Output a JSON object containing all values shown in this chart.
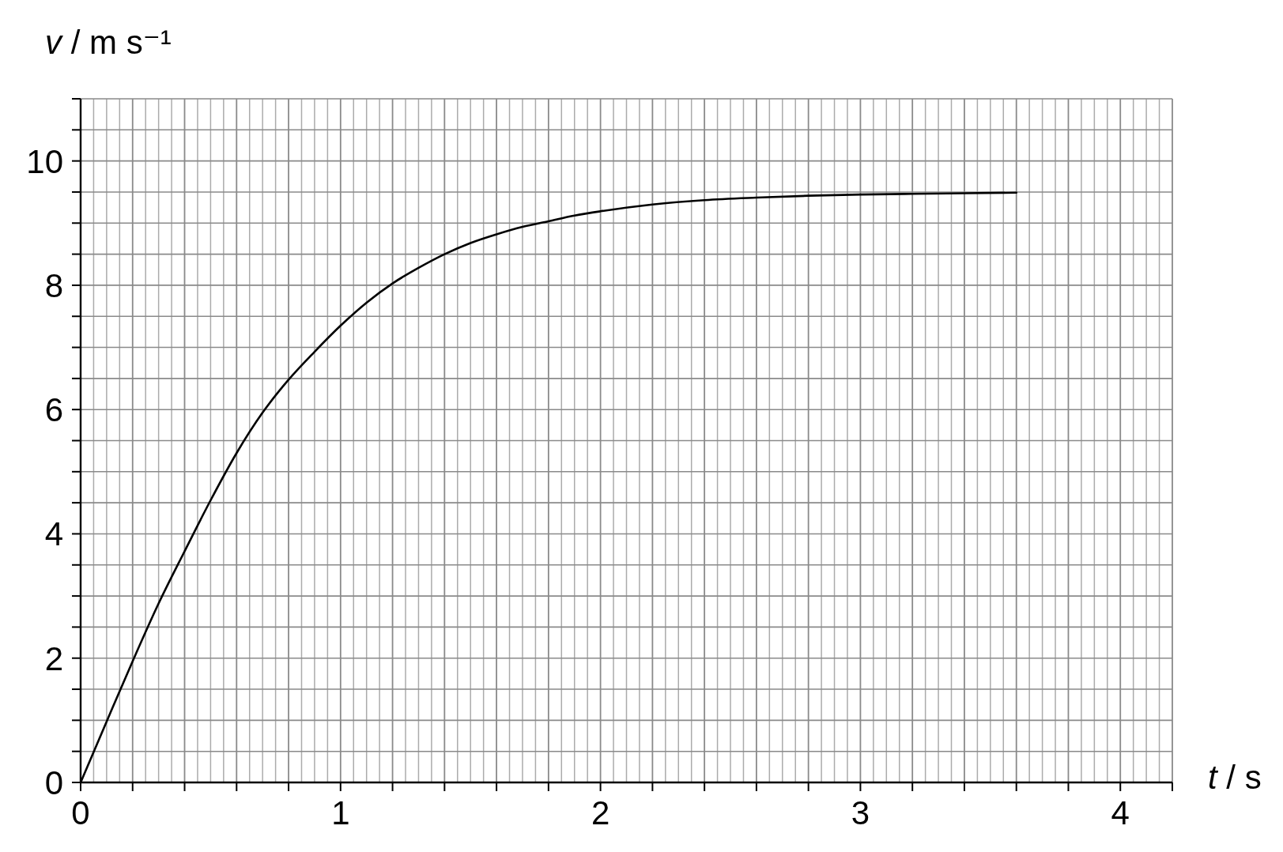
{
  "chart_data": {
    "type": "line",
    "xlabel": "t / s",
    "ylabel": "v / m s⁻¹",
    "x": [
      0,
      0.1,
      0.2,
      0.3,
      0.4,
      0.5,
      0.6,
      0.7,
      0.8,
      0.9,
      1.0,
      1.1,
      1.2,
      1.3,
      1.4,
      1.5,
      1.6,
      1.7,
      1.8,
      1.9,
      2.0,
      2.2,
      2.4,
      2.6,
      2.8,
      3.0,
      3.2,
      3.4,
      3.6
    ],
    "series": [
      {
        "color": "#000000",
        "values": [
          0,
          0.98,
          1.95,
          2.88,
          3.72,
          4.54,
          5.3,
          5.95,
          6.48,
          6.93,
          7.35,
          7.72,
          8.03,
          8.28,
          8.5,
          8.68,
          8.82,
          8.94,
          9.03,
          9.12,
          9.19,
          9.3,
          9.37,
          9.41,
          9.44,
          9.46,
          9.47,
          9.48,
          9.49
        ]
      }
    ],
    "xlim": [
      0,
      4.2
    ],
    "ylim": [
      0,
      11
    ],
    "xticks": [
      0,
      {
        "value": 0.2,
        "label": null
      },
      {
        "value": 0.4,
        "label": null
      },
      {
        "value": 0.6,
        "label": null
      },
      {
        "value": 0.8,
        "label": null
      },
      1,
      {
        "value": 1.2,
        "label": null
      },
      {
        "value": 1.4,
        "label": null
      },
      {
        "value": 1.6,
        "label": null
      },
      {
        "value": 1.8,
        "label": null
      },
      2,
      {
        "value": 2.2,
        "label": null
      },
      {
        "value": 2.4,
        "label": null
      },
      {
        "value": 2.6,
        "label": null
      },
      {
        "value": 2.8,
        "label": null
      },
      3,
      {
        "value": 3.2,
        "label": null
      },
      {
        "value": 3.4,
        "label": null
      },
      {
        "value": 3.6,
        "label": null
      },
      {
        "value": 3.8,
        "label": null
      },
      4,
      {
        "value": 4.2,
        "label": null
      }
    ],
    "yticks": [
      0,
      {
        "value": 0.5,
        "label": null
      },
      {
        "value": 1,
        "label": null
      },
      {
        "value": 1.5,
        "label": null
      },
      2,
      {
        "value": 2.5,
        "label": null
      },
      {
        "value": 3,
        "label": null
      },
      {
        "value": 3.5,
        "label": null
      },
      4,
      {
        "value": 4.5,
        "label": null
      },
      {
        "value": 5,
        "label": null
      },
      {
        "value": 5.5,
        "label": null
      },
      6,
      {
        "value": 6.5,
        "label": null
      },
      {
        "value": 7,
        "label": null
      },
      {
        "value": 7.5,
        "label": null
      },
      8,
      {
        "value": 8.5,
        "label": null
      },
      {
        "value": 9,
        "label": null
      },
      {
        "value": 9.5,
        "label": null
      },
      10,
      {
        "value": 10.5,
        "label": null
      },
      {
        "value": 11,
        "label": null
      }
    ],
    "grid": true,
    "line_style": "solid"
  }
}
